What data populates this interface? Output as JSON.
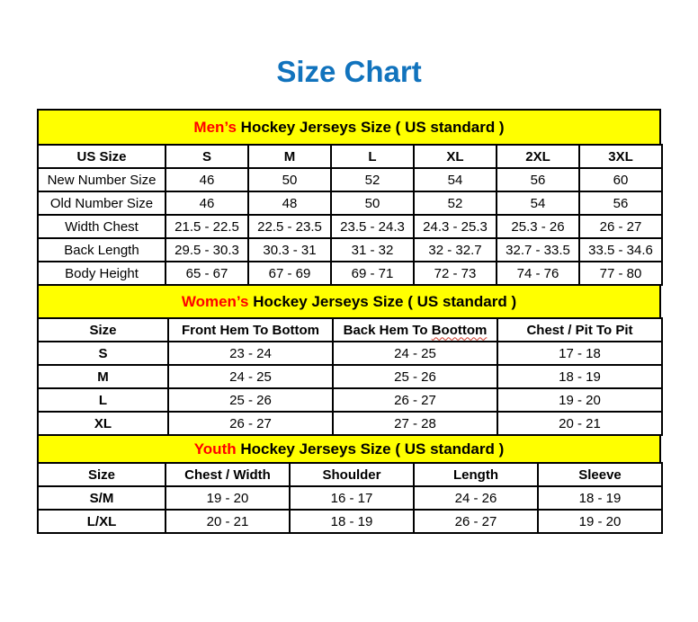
{
  "page": {
    "title": "Size Chart"
  },
  "colors": {
    "title_blue": "#1173BD",
    "highlight_red": "#FF0000",
    "band_yellow": "#FFFF00",
    "border_black": "#000000",
    "squiggle_red": "#D03A2B"
  },
  "sections": [
    {
      "name": "mens",
      "band": {
        "highlight": "Men’s",
        "rest": " Hockey Jerseys Size ( US standard )"
      },
      "columns": [
        "US Size",
        "S",
        "M",
        "L",
        "XL",
        "2XL",
        "3XL"
      ],
      "bold_first_col": false,
      "rows": [
        [
          "New Number Size",
          "46",
          "50",
          "52",
          "54",
          "56",
          "60"
        ],
        [
          "Old Number Size",
          "46",
          "48",
          "50",
          "52",
          "54",
          "56"
        ],
        [
          "Width Chest",
          "21.5 - 22.5",
          "22.5 - 23.5",
          "23.5 - 24.3",
          "24.3 - 25.3",
          "25.3 - 26",
          "26 - 27"
        ],
        [
          "Back Length",
          "29.5 - 30.3",
          "30.3 - 31",
          "31 - 32",
          "32 - 32.7",
          "32.7 - 33.5",
          "33.5 - 34.6"
        ],
        [
          "Body Height",
          "65 - 67",
          "67 - 69",
          "69 - 71",
          "72 - 73",
          "74 - 76",
          "77 - 80"
        ]
      ]
    },
    {
      "name": "womens",
      "band": {
        "highlight": "Women’s",
        "rest": " Hockey Jerseys Size ( US standard )"
      },
      "columns": [
        "Size",
        "Front Hem To Bottom",
        "Back Hem To Boottom",
        "Chest / Pit To Pit"
      ],
      "squiggle_word": "Boottom",
      "bold_first_col": true,
      "rows": [
        [
          "S",
          "23 - 24",
          "24 - 25",
          "17 - 18"
        ],
        [
          "M",
          "24 - 25",
          "25 - 26",
          "18 - 19"
        ],
        [
          "L",
          "25 - 26",
          "26 - 27",
          "19 - 20"
        ],
        [
          "XL",
          "26 - 27",
          "27 - 28",
          "20 - 21"
        ]
      ]
    },
    {
      "name": "youth",
      "band": {
        "highlight": "Youth",
        "rest": " Hockey Jerseys Size ( US standard )"
      },
      "columns": [
        "Size",
        "Chest / Width",
        "Shoulder",
        "Length",
        "Sleeve"
      ],
      "bold_first_col": true,
      "rows": [
        [
          "S/M",
          "19 - 20",
          "16 - 17",
          "24 - 26",
          "18 - 19"
        ],
        [
          "L/XL",
          "20 - 21",
          "18 - 19",
          "26 - 27",
          "19 - 20"
        ]
      ]
    }
  ]
}
